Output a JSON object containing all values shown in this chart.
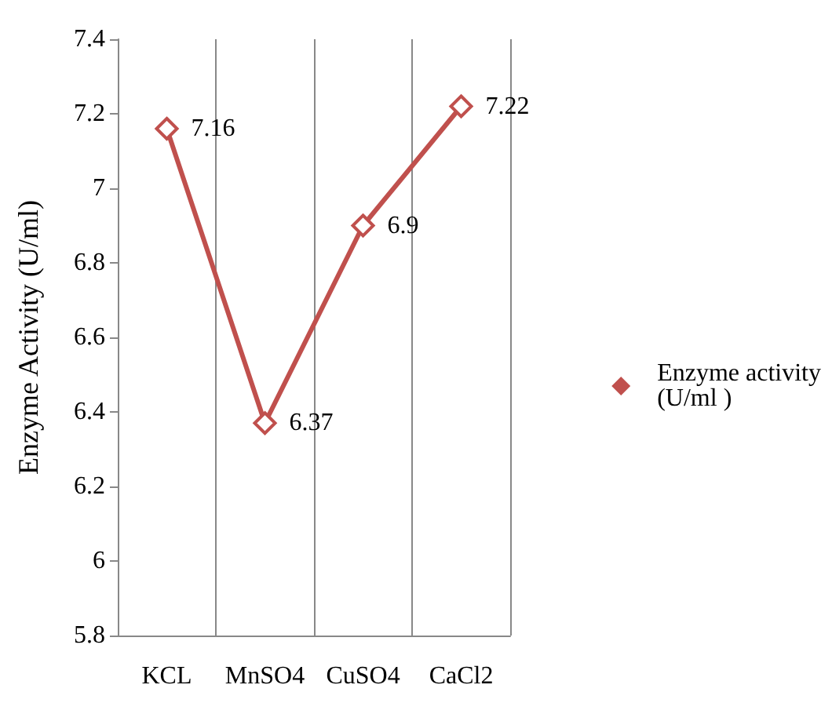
{
  "chart_data": {
    "type": "line",
    "ylabel": "Enzyme Activity (U/ml)",
    "categories": [
      "KCL",
      "MnSO4",
      "CuSO4",
      "CaCl2"
    ],
    "series": [
      {
        "name": "Enzyme activity (U/ml )",
        "color": "#c0504d",
        "values": [
          7.16,
          6.37,
          6.9,
          7.22
        ]
      }
    ],
    "ylim": [
      5.8,
      7.4
    ],
    "yticks": [
      5.8,
      6,
      6.2,
      6.4,
      6.6,
      6.8,
      7,
      7.2,
      7.4
    ],
    "grid": "x",
    "legend": "right",
    "marker": "diamond",
    "line_style": "solid",
    "data_labels": true
  }
}
